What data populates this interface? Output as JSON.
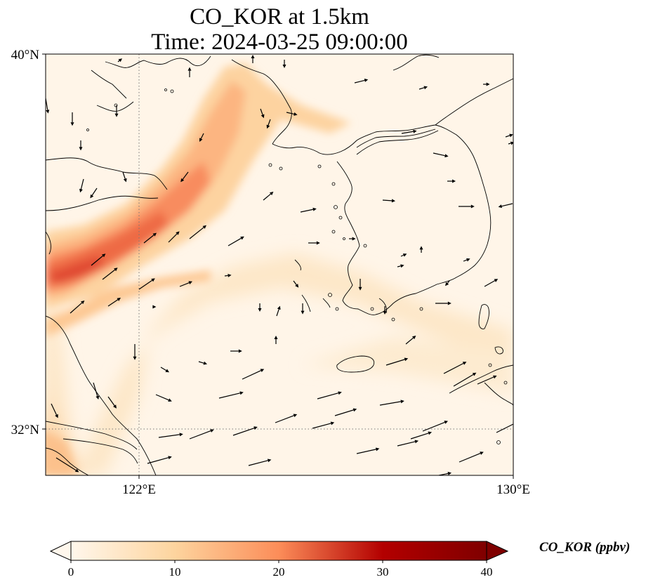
{
  "title": {
    "line1": "CO_KOR at 1.5km",
    "line2": "Time: 2024-03-25 09:00:00"
  },
  "axes": {
    "lat_ticks": [
      "40°N",
      "32°N"
    ],
    "lon_ticks": [
      "122°E",
      "130°E"
    ],
    "lon_range": [
      120,
      130
    ],
    "lat_range": [
      31,
      40
    ],
    "gridlines": "dotted at 122°E and 32°N"
  },
  "colorbar": {
    "label": "CO_KOR (ppbv)",
    "ticks": [
      "0",
      "10",
      "20",
      "30",
      "40"
    ],
    "range": [
      0,
      40
    ],
    "colormap": "OrRd",
    "extend": "both"
  },
  "chart_data": {
    "type": "heatmap",
    "variable": "CO_KOR",
    "units": "ppbv",
    "plume_peak_value_approx": 28,
    "overlay": "wind vectors"
  }
}
